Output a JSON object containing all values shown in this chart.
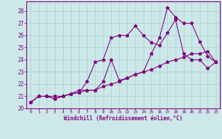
{
  "xlabel": "Windchill (Refroidissement éolien,°C)",
  "background_color": "#cce8e8",
  "line_color": "#800080",
  "grid_color": "#aacccc",
  "xlim": [
    -0.5,
    23.5
  ],
  "ylim": [
    20,
    28.8
  ],
  "yticks": [
    20,
    21,
    22,
    23,
    24,
    25,
    26,
    27,
    28
  ],
  "xticks": [
    0,
    1,
    2,
    3,
    4,
    5,
    6,
    7,
    8,
    9,
    10,
    11,
    12,
    13,
    14,
    15,
    16,
    17,
    18,
    19,
    20,
    21,
    22,
    23
  ],
  "line1_x": [
    0,
    1,
    2,
    3,
    4,
    5,
    6,
    7,
    8,
    9,
    10,
    11,
    12,
    13,
    14,
    15,
    16,
    17,
    18,
    19,
    20,
    21,
    22,
    23
  ],
  "line1_y": [
    20.5,
    21.0,
    21.0,
    20.8,
    21.0,
    21.2,
    21.3,
    21.5,
    21.5,
    22.2,
    24.0,
    22.3,
    22.5,
    22.8,
    23.0,
    24.5,
    25.8,
    28.3,
    27.5,
    27.0,
    27.0,
    25.5,
    24.3,
    23.8
  ],
  "line2_x": [
    0,
    1,
    2,
    3,
    4,
    5,
    6,
    7,
    8,
    9,
    10,
    11,
    12,
    13,
    14,
    15,
    16,
    17,
    18,
    19,
    20,
    21,
    22,
    23
  ],
  "line2_y": [
    20.5,
    21.0,
    21.0,
    20.8,
    21.0,
    21.2,
    21.3,
    22.2,
    23.8,
    24.0,
    25.8,
    26.0,
    26.0,
    26.8,
    26.0,
    25.4,
    25.2,
    26.2,
    27.3,
    24.5,
    24.0,
    24.0,
    23.3,
    23.8
  ],
  "line3_x": [
    0,
    1,
    2,
    3,
    4,
    5,
    6,
    7,
    8,
    9,
    10,
    11,
    12,
    13,
    14,
    15,
    16,
    17,
    18,
    19,
    20,
    21,
    22,
    23
  ],
  "line3_y": [
    20.5,
    21.0,
    21.0,
    21.0,
    21.0,
    21.2,
    21.5,
    21.5,
    21.5,
    21.8,
    22.0,
    22.2,
    22.5,
    22.8,
    23.0,
    23.2,
    23.5,
    23.8,
    24.0,
    24.2,
    24.5,
    24.5,
    24.7,
    23.8
  ]
}
